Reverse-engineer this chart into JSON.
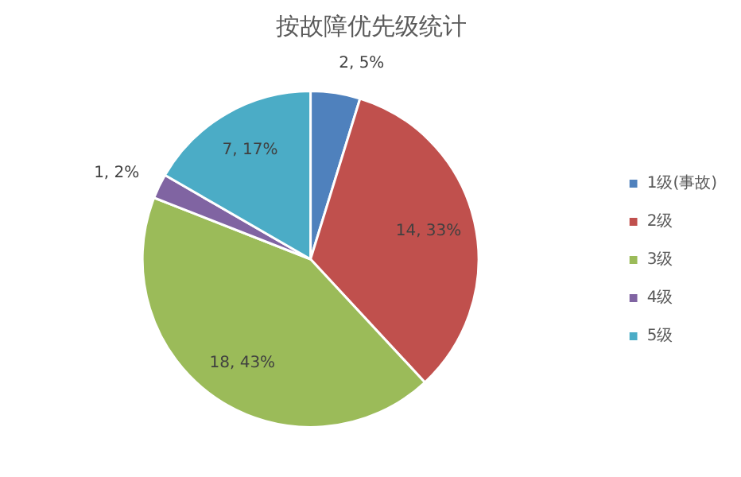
{
  "chart_data": {
    "type": "pie",
    "title": "按故障优先级统计",
    "categories": [
      "1级(事故)",
      "2级",
      "3级",
      "4级",
      "5级"
    ],
    "values": [
      2,
      14,
      18,
      1,
      7
    ],
    "colors": [
      "#4f81bd",
      "#c0504d",
      "#9bbb59",
      "#8064a2",
      "#4bacc6"
    ],
    "value_labels": [
      "2, 5%",
      "14, 33%",
      "18, 43%",
      "1, 2%",
      "7, 17%"
    ],
    "legend": "right"
  }
}
